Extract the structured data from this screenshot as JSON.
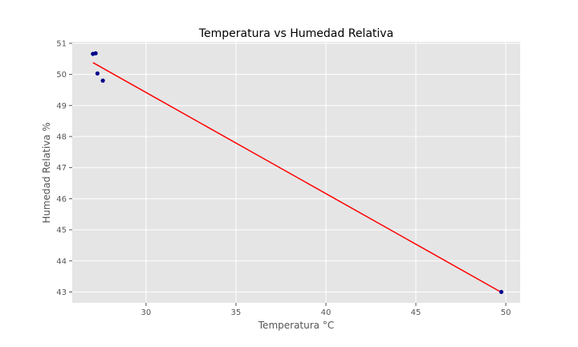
{
  "chart_data": {
    "type": "scatter",
    "title": "Temperatura vs Humedad Relativa",
    "xlabel": "Temperatura °C",
    "ylabel": "Humedad Relativa %",
    "xlim": [
      25.9,
      50.8
    ],
    "ylim": [
      42.65,
      51.05
    ],
    "x_ticks": [
      30,
      35,
      40,
      45,
      50
    ],
    "y_ticks": [
      43,
      44,
      45,
      46,
      47,
      48,
      49,
      50,
      51
    ],
    "grid": true,
    "series": [
      {
        "type": "scatter",
        "color": "#00008b",
        "points": [
          {
            "x": 27.05,
            "y": 50.66
          },
          {
            "x": 27.2,
            "y": 50.68
          },
          {
            "x": 27.3,
            "y": 50.03
          },
          {
            "x": 27.6,
            "y": 49.8
          },
          {
            "x": 49.75,
            "y": 43.0
          }
        ]
      },
      {
        "type": "line",
        "color": "#ff0000",
        "points": [
          {
            "x": 27.05,
            "y": 50.38
          },
          {
            "x": 49.75,
            "y": 42.99
          }
        ]
      }
    ]
  }
}
